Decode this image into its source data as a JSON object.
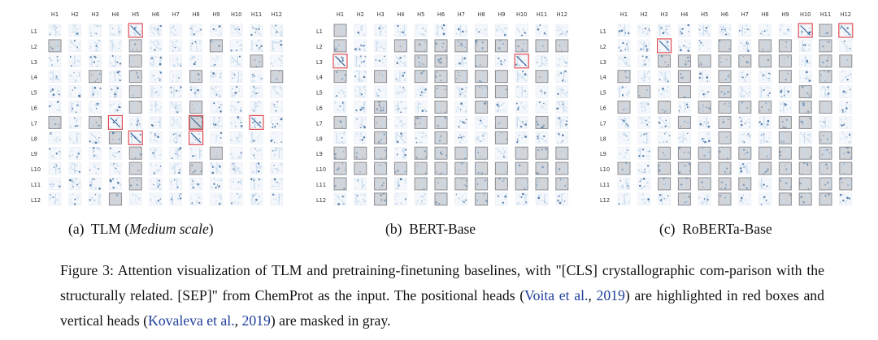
{
  "panels": [
    {
      "id": "a",
      "label": "(a)",
      "title": "TLM",
      "qualifier_open": "(",
      "qualifier": "Medium scale",
      "qualifier_close": ")",
      "col_labels": [
        "H1",
        "H2",
        "H3",
        "H4",
        "H5",
        "H6",
        "H7",
        "H8",
        "H9",
        "H10",
        "H11",
        "H12"
      ],
      "row_labels": [
        "L1",
        "L2",
        "L3",
        "L4",
        "L5",
        "L6",
        "L7",
        "L8",
        "L9",
        "L10",
        "L11",
        "L12"
      ],
      "positional_heads": [
        [
          1,
          5
        ],
        [
          7,
          4
        ],
        [
          7,
          8
        ],
        [
          7,
          11
        ],
        [
          8,
          5
        ],
        [
          8,
          8
        ]
      ],
      "vertical_heads": [
        [
          2,
          1
        ],
        [
          2,
          5
        ],
        [
          2,
          9
        ],
        [
          3,
          5
        ],
        [
          3,
          11
        ],
        [
          4,
          3
        ],
        [
          4,
          5
        ],
        [
          4,
          8
        ],
        [
          4,
          12
        ],
        [
          5,
          5
        ],
        [
          6,
          5
        ],
        [
          6,
          8
        ],
        [
          7,
          1
        ],
        [
          7,
          3
        ],
        [
          7,
          8
        ],
        [
          8,
          4
        ],
        [
          9,
          5
        ],
        [
          9,
          9
        ],
        [
          10,
          5
        ],
        [
          10,
          8
        ],
        [
          11,
          5
        ],
        [
          12,
          4
        ]
      ]
    },
    {
      "id": "b",
      "label": "(b)",
      "title": "BERT-Base",
      "col_labels": [
        "H1",
        "H2",
        "H3",
        "H4",
        "H5",
        "H6",
        "H7",
        "H8",
        "H9",
        "H10",
        "H11",
        "H12"
      ],
      "row_labels": [
        "L1",
        "L2",
        "L3",
        "L4",
        "L5",
        "L6",
        "L7",
        "L8",
        "L9",
        "L10",
        "L11",
        "L12"
      ],
      "positional_heads": [
        [
          3,
          1
        ],
        [
          3,
          10
        ]
      ],
      "vertical_heads": [
        [
          1,
          1
        ],
        [
          2,
          1
        ],
        [
          2,
          4
        ],
        [
          2,
          5
        ],
        [
          2,
          6
        ],
        [
          2,
          7
        ],
        [
          2,
          8
        ],
        [
          2,
          9
        ],
        [
          2,
          10
        ],
        [
          2,
          11
        ],
        [
          2,
          12
        ],
        [
          3,
          5
        ],
        [
          3,
          6
        ],
        [
          3,
          8
        ],
        [
          4,
          1
        ],
        [
          4,
          3
        ],
        [
          4,
          5
        ],
        [
          4,
          6
        ],
        [
          4,
          7
        ],
        [
          4,
          8
        ],
        [
          4,
          9
        ],
        [
          4,
          11
        ],
        [
          5,
          6
        ],
        [
          5,
          8
        ],
        [
          5,
          9
        ],
        [
          6,
          3
        ],
        [
          6,
          6
        ],
        [
          6,
          8
        ],
        [
          7,
          1
        ],
        [
          7,
          3
        ],
        [
          7,
          5
        ],
        [
          7,
          6
        ],
        [
          7,
          9
        ],
        [
          7,
          11
        ],
        [
          8,
          3
        ],
        [
          8,
          6
        ],
        [
          8,
          9
        ],
        [
          9,
          1
        ],
        [
          9,
          2
        ],
        [
          9,
          3
        ],
        [
          9,
          5
        ],
        [
          9,
          6
        ],
        [
          9,
          7
        ],
        [
          9,
          8
        ],
        [
          9,
          10
        ],
        [
          9,
          11
        ],
        [
          9,
          12
        ],
        [
          10,
          1
        ],
        [
          10,
          2
        ],
        [
          10,
          3
        ],
        [
          10,
          4
        ],
        [
          10,
          5
        ],
        [
          10,
          6
        ],
        [
          10,
          7
        ],
        [
          10,
          8
        ],
        [
          10,
          9
        ],
        [
          10,
          10
        ],
        [
          10,
          11
        ],
        [
          10,
          12
        ],
        [
          11,
          1
        ],
        [
          11,
          3
        ],
        [
          11,
          5
        ],
        [
          11,
          6
        ],
        [
          11,
          7
        ],
        [
          11,
          8
        ],
        [
          11,
          9
        ],
        [
          11,
          10
        ],
        [
          11,
          11
        ],
        [
          11,
          12
        ],
        [
          12,
          3
        ],
        [
          12,
          6
        ],
        [
          12,
          8
        ]
      ]
    },
    {
      "id": "c",
      "label": "(c)",
      "title": "RoBERTa-Base",
      "col_labels": [
        "H1",
        "H2",
        "H3",
        "H4",
        "H5",
        "H6",
        "H7",
        "H8",
        "H9",
        "H10",
        "H11",
        "H12"
      ],
      "row_labels": [
        "L1",
        "L2",
        "L3",
        "L4",
        "L5",
        "L6",
        "L7",
        "L8",
        "L9",
        "L10",
        "L11",
        "L12"
      ],
      "positional_heads": [
        [
          1,
          10
        ],
        [
          1,
          12
        ],
        [
          2,
          3
        ]
      ],
      "vertical_heads": [
        [
          1,
          11
        ],
        [
          2,
          6
        ],
        [
          2,
          8
        ],
        [
          2,
          9
        ],
        [
          2,
          11
        ],
        [
          3,
          3
        ],
        [
          3,
          4
        ],
        [
          3,
          5
        ],
        [
          3,
          6
        ],
        [
          3,
          7
        ],
        [
          3,
          8
        ],
        [
          3,
          9
        ],
        [
          3,
          11
        ],
        [
          3,
          12
        ],
        [
          4,
          1
        ],
        [
          4,
          4
        ],
        [
          4,
          6
        ],
        [
          4,
          9
        ],
        [
          4,
          11
        ],
        [
          5,
          2
        ],
        [
          5,
          4
        ],
        [
          5,
          6
        ],
        [
          5,
          10
        ],
        [
          6,
          1
        ],
        [
          6,
          3
        ],
        [
          6,
          5
        ],
        [
          6,
          6
        ],
        [
          6,
          7
        ],
        [
          6,
          8
        ],
        [
          6,
          10
        ],
        [
          6,
          11
        ],
        [
          7,
          4
        ],
        [
          7,
          6
        ],
        [
          7,
          9
        ],
        [
          7,
          10
        ],
        [
          8,
          6
        ],
        [
          8,
          9
        ],
        [
          8,
          11
        ],
        [
          9,
          3
        ],
        [
          9,
          4
        ],
        [
          9,
          5
        ],
        [
          9,
          6
        ],
        [
          9,
          7
        ],
        [
          9,
          8
        ],
        [
          9,
          9
        ],
        [
          9,
          10
        ],
        [
          9,
          11
        ],
        [
          9,
          12
        ],
        [
          10,
          1
        ],
        [
          10,
          3
        ],
        [
          10,
          4
        ],
        [
          10,
          5
        ],
        [
          10,
          6
        ],
        [
          10,
          8
        ],
        [
          10,
          9
        ],
        [
          10,
          10
        ],
        [
          10,
          11
        ],
        [
          10,
          12
        ],
        [
          11,
          3
        ],
        [
          11,
          4
        ],
        [
          11,
          5
        ],
        [
          11,
          6
        ],
        [
          11,
          7
        ],
        [
          11,
          9
        ],
        [
          11,
          10
        ],
        [
          11,
          11
        ],
        [
          11,
          12
        ],
        [
          12,
          4
        ],
        [
          12,
          6
        ],
        [
          12,
          9
        ],
        [
          12,
          10
        ],
        [
          12,
          11
        ]
      ]
    }
  ],
  "colors": {
    "positional_box": "#e0404a",
    "vertical_fill": "#d2d4d8",
    "vertical_border": "#8b8f96",
    "attention_light": "#c7dbee",
    "attention_dark": "#2f5f95",
    "citation": "#1f3f9a"
  },
  "caption": {
    "prefix": "Figure 3: Attention visualization of TLM and pretraining-finetuning baselines, with \"[CLS] crystallographic com-parison with the structurally related. [SEP]\" from ChemProt as the input. The positional heads (",
    "cite1_author": "Voita et al.",
    "cite1_sep": ", ",
    "cite1_year": "2019",
    "mid": ") are highlighted in red boxes and vertical heads (",
    "cite2_author": "Kovaleva et al.",
    "cite2_sep": ", ",
    "cite2_year": "2019",
    "suffix": ") are masked in gray."
  }
}
